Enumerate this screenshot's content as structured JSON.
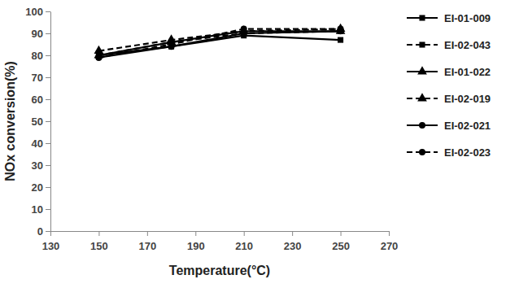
{
  "chart_data": {
    "type": "line",
    "x_label": "Temperature(°C)",
    "y_label": "NOx conversion(%)",
    "x": [
      150,
      180,
      210,
      250
    ],
    "xlim": [
      130,
      270
    ],
    "xticks": [
      130,
      150,
      170,
      190,
      210,
      230,
      250,
      270
    ],
    "ylim": [
      0,
      100
    ],
    "yticks": [
      0,
      10,
      20,
      30,
      40,
      50,
      60,
      70,
      80,
      90,
      100
    ],
    "grid": false,
    "legend": "right",
    "series": [
      {
        "name": "EI-01-009",
        "color": "#000000",
        "marker": "square",
        "line_style": "solid",
        "values": [
          80,
          84,
          89,
          87
        ]
      },
      {
        "name": "EI-02-043",
        "color": "#000000",
        "marker": "square",
        "line_style": "dashed",
        "values": [
          80,
          86,
          90,
          91
        ]
      },
      {
        "name": "EI-01-022",
        "color": "#000000",
        "marker": "triangle",
        "line_style": "solid",
        "values": [
          80,
          86,
          91,
          91
        ]
      },
      {
        "name": "EI-02-019",
        "color": "#000000",
        "marker": "triangle",
        "line_style": "dashed",
        "values": [
          82,
          87,
          91,
          92
        ]
      },
      {
        "name": "EI-02-021",
        "color": "#000000",
        "marker": "circle",
        "line_style": "solid",
        "values": [
          79,
          84,
          90,
          91
        ]
      },
      {
        "name": "EI-02-023",
        "color": "#000000",
        "marker": "circle",
        "line_style": "dashed",
        "values": [
          79,
          85,
          92,
          92
        ]
      }
    ]
  }
}
